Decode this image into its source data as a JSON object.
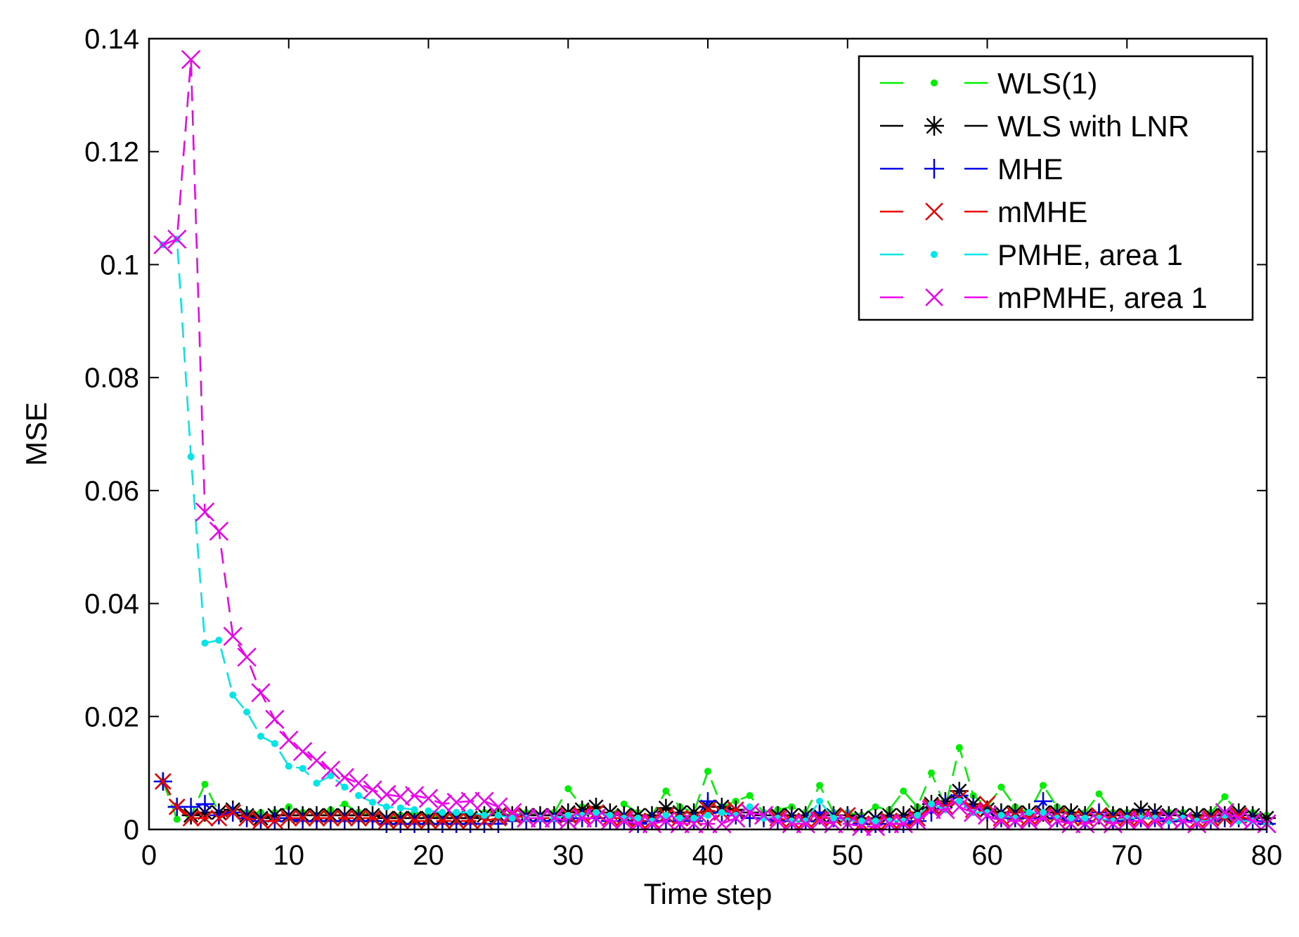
{
  "chart_data": {
    "type": "line",
    "title": "",
    "xlabel": "Time step",
    "ylabel": "MSE",
    "xlim": [
      0,
      80
    ],
    "ylim": [
      0,
      0.14
    ],
    "xticks": [
      0,
      10,
      20,
      30,
      40,
      50,
      60,
      70,
      80
    ],
    "xtick_labels": [
      "0",
      "10",
      "20",
      "30",
      "40",
      "50",
      "60",
      "70",
      "80"
    ],
    "yticks": [
      0,
      0.02,
      0.04,
      0.06,
      0.08,
      0.1,
      0.12,
      0.14
    ],
    "ytick_labels": [
      "0",
      "0.02",
      "0.04",
      "0.06",
      "0.08",
      "0.1",
      "0.12",
      "0.14"
    ],
    "grid": false,
    "legend_position": "top-right",
    "series": [
      {
        "name": "WLS(1)",
        "color": "#00ee00",
        "marker": "dot",
        "line": "dashed",
        "x": [
          1,
          2,
          3,
          4,
          5,
          6,
          7,
          8,
          9,
          10,
          11,
          12,
          13,
          14,
          15,
          16,
          17,
          18,
          19,
          20,
          21,
          22,
          23,
          24,
          25,
          26,
          27,
          28,
          29,
          30,
          31,
          32,
          33,
          34,
          35,
          36,
          37,
          38,
          39,
          40,
          41,
          42,
          43,
          44,
          45,
          46,
          47,
          48,
          49,
          50,
          51,
          52,
          53,
          54,
          55,
          56,
          57,
          58,
          59,
          60,
          61,
          62,
          63,
          64,
          65,
          66,
          67,
          68,
          69,
          70,
          71,
          72,
          73,
          74,
          75,
          76,
          77,
          78,
          79,
          80
        ],
        "values": [
          0.0085,
          0.0018,
          0.0025,
          0.008,
          0.003,
          0.0035,
          0.003,
          0.003,
          0.003,
          0.004,
          0.003,
          0.0025,
          0.0035,
          0.0045,
          0.003,
          0.0025,
          0.002,
          0.0025,
          0.003,
          0.0025,
          0.002,
          0.003,
          0.0025,
          0.003,
          0.003,
          0.0025,
          0.003,
          0.0025,
          0.003,
          0.0072,
          0.004,
          0.003,
          0.0025,
          0.0045,
          0.003,
          0.0025,
          0.0068,
          0.004,
          0.003,
          0.0103,
          0.004,
          0.005,
          0.006,
          0.003,
          0.0035,
          0.004,
          0.003,
          0.0078,
          0.003,
          0.003,
          0.0025,
          0.004,
          0.0035,
          0.0068,
          0.004,
          0.01,
          0.004,
          0.0145,
          0.006,
          0.004,
          0.0075,
          0.004,
          0.003,
          0.0078,
          0.004,
          0.003,
          0.003,
          0.0063,
          0.003,
          0.003,
          0.003,
          0.0025,
          0.003,
          0.003,
          0.0025,
          0.003,
          0.0058,
          0.003,
          0.003,
          0.0025
        ]
      },
      {
        "name": "WLS with LNR",
        "color": "#000000",
        "marker": "asterisk",
        "line": "dashed",
        "x": [
          1,
          2,
          3,
          4,
          5,
          6,
          7,
          8,
          9,
          10,
          11,
          12,
          13,
          14,
          15,
          16,
          17,
          18,
          19,
          20,
          21,
          22,
          23,
          24,
          25,
          26,
          27,
          28,
          29,
          30,
          31,
          32,
          33,
          34,
          35,
          36,
          37,
          38,
          39,
          40,
          41,
          42,
          43,
          44,
          45,
          46,
          47,
          48,
          49,
          50,
          51,
          52,
          53,
          54,
          55,
          56,
          57,
          58,
          59,
          60,
          61,
          62,
          63,
          64,
          65,
          66,
          67,
          68,
          69,
          70,
          71,
          72,
          73,
          74,
          75,
          76,
          77,
          78,
          79,
          80
        ],
        "values": [
          0.0085,
          0.004,
          0.0025,
          0.003,
          0.003,
          0.0035,
          0.0025,
          0.002,
          0.0025,
          0.0025,
          0.0025,
          0.0025,
          0.0025,
          0.0025,
          0.0025,
          0.0025,
          0.002,
          0.002,
          0.002,
          0.002,
          0.002,
          0.002,
          0.002,
          0.0025,
          0.0025,
          0.0025,
          0.0025,
          0.0025,
          0.0025,
          0.003,
          0.0035,
          0.004,
          0.003,
          0.0025,
          0.0025,
          0.0025,
          0.0038,
          0.003,
          0.003,
          0.004,
          0.004,
          0.0035,
          0.003,
          0.0025,
          0.0025,
          0.0025,
          0.0025,
          0.0025,
          0.0025,
          0.0025,
          0.002,
          0.002,
          0.0025,
          0.0025,
          0.003,
          0.0045,
          0.005,
          0.0068,
          0.0045,
          0.0035,
          0.003,
          0.003,
          0.003,
          0.003,
          0.003,
          0.003,
          0.0025,
          0.0025,
          0.0025,
          0.0025,
          0.0035,
          0.003,
          0.0025,
          0.0025,
          0.0025,
          0.0025,
          0.0025,
          0.003,
          0.0025,
          0.002
        ]
      },
      {
        "name": "MHE",
        "color": "#0000ee",
        "marker": "plus",
        "line": "dashed",
        "x": [
          1,
          2,
          3,
          4,
          5,
          6,
          7,
          8,
          9,
          10,
          11,
          12,
          13,
          14,
          15,
          16,
          17,
          18,
          19,
          20,
          21,
          22,
          23,
          24,
          25,
          26,
          27,
          28,
          29,
          30,
          31,
          32,
          33,
          34,
          35,
          36,
          37,
          38,
          39,
          40,
          41,
          42,
          43,
          44,
          45,
          46,
          47,
          48,
          49,
          50,
          51,
          52,
          53,
          54,
          55,
          56,
          57,
          58,
          59,
          60,
          61,
          62,
          63,
          64,
          65,
          66,
          67,
          68,
          69,
          70,
          71,
          72,
          73,
          74,
          75,
          76,
          77,
          78,
          79,
          80
        ],
        "values": [
          0.0085,
          0.004,
          0.004,
          0.0045,
          0.0025,
          0.003,
          0.002,
          0.0015,
          0.0015,
          0.002,
          0.0015,
          0.0015,
          0.0015,
          0.0015,
          0.0015,
          0.0015,
          0.001,
          0.001,
          0.001,
          0.001,
          0.001,
          0.001,
          0.001,
          0.001,
          0.001,
          0.0015,
          0.0015,
          0.0015,
          0.0015,
          0.0015,
          0.002,
          0.002,
          0.0015,
          0.0015,
          0.001,
          0.0015,
          0.0015,
          0.0015,
          0.0015,
          0.005,
          0.003,
          0.0025,
          0.002,
          0.002,
          0.0015,
          0.0015,
          0.0015,
          0.003,
          0.002,
          0.002,
          0.001,
          0.001,
          0.001,
          0.001,
          0.0015,
          0.003,
          0.0045,
          0.006,
          0.004,
          0.003,
          0.002,
          0.002,
          0.002,
          0.005,
          0.002,
          0.0015,
          0.0015,
          0.003,
          0.0015,
          0.0015,
          0.002,
          0.002,
          0.0015,
          0.0015,
          0.0015,
          0.0015,
          0.002,
          0.002,
          0.0015,
          0.001
        ]
      },
      {
        "name": "mMHE",
        "color": "#ee0000",
        "marker": "x",
        "line": "dashed",
        "x": [
          1,
          2,
          3,
          4,
          5,
          6,
          7,
          8,
          9,
          10,
          11,
          12,
          13,
          14,
          15,
          16,
          17,
          18,
          19,
          20,
          21,
          22,
          23,
          24,
          25,
          26,
          27,
          28,
          29,
          30,
          31,
          32,
          33,
          34,
          35,
          36,
          37,
          38,
          39,
          40,
          41,
          42,
          43,
          44,
          45,
          46,
          47,
          48,
          49,
          50,
          51,
          52,
          53,
          54,
          55,
          56,
          57,
          58,
          59,
          60,
          61,
          62,
          63,
          64,
          65,
          66,
          67,
          68,
          69,
          70,
          71,
          72,
          73,
          74,
          75,
          76,
          77,
          78,
          79,
          80
        ],
        "values": [
          0.0085,
          0.004,
          0.002,
          0.002,
          0.002,
          0.003,
          0.002,
          0.0015,
          0.0015,
          0.002,
          0.002,
          0.002,
          0.002,
          0.002,
          0.002,
          0.002,
          0.0015,
          0.0015,
          0.0015,
          0.0015,
          0.0015,
          0.0015,
          0.0015,
          0.0015,
          0.002,
          0.0025,
          0.002,
          0.002,
          0.002,
          0.0025,
          0.0025,
          0.003,
          0.002,
          0.002,
          0.0015,
          0.0015,
          0.0025,
          0.002,
          0.002,
          0.0035,
          0.003,
          0.0035,
          0.003,
          0.0025,
          0.002,
          0.0015,
          0.0015,
          0.002,
          0.002,
          0.0025,
          0.001,
          0.001,
          0.0015,
          0.0015,
          0.002,
          0.004,
          0.004,
          0.0055,
          0.0035,
          0.0045,
          0.002,
          0.0025,
          0.002,
          0.0025,
          0.0025,
          0.002,
          0.002,
          0.0025,
          0.002,
          0.002,
          0.002,
          0.002,
          0.002,
          0.0015,
          0.0015,
          0.002,
          0.002,
          0.0025,
          0.0015,
          0.001
        ]
      },
      {
        "name": "PMHE, area 1",
        "color": "#00e5e5",
        "marker": "dot",
        "line": "dashed",
        "x": [
          1,
          2,
          3,
          4,
          5,
          6,
          7,
          8,
          9,
          10,
          11,
          12,
          13,
          14,
          15,
          16,
          17,
          18,
          19,
          20,
          21,
          22,
          23,
          24,
          25,
          26,
          27,
          28,
          29,
          30,
          31,
          32,
          33,
          34,
          35,
          36,
          37,
          38,
          39,
          40,
          41,
          42,
          43,
          44,
          45,
          46,
          47,
          48,
          49,
          50,
          51,
          52,
          53,
          54,
          55,
          56,
          57,
          58,
          59,
          60,
          61,
          62,
          63,
          64,
          65,
          66,
          67,
          68,
          69,
          70,
          71,
          72,
          73,
          74,
          75,
          76,
          77,
          78,
          79,
          80
        ],
        "values": [
          0.1035,
          0.1045,
          0.066,
          0.033,
          0.0335,
          0.0238,
          0.0208,
          0.0165,
          0.0152,
          0.0112,
          0.0108,
          0.0082,
          0.0095,
          0.0075,
          0.006,
          0.0048,
          0.004,
          0.0038,
          0.0035,
          0.0033,
          0.003,
          0.003,
          0.003,
          0.0025,
          0.0025,
          0.002,
          0.002,
          0.002,
          0.002,
          0.0025,
          0.0025,
          0.003,
          0.0025,
          0.002,
          0.002,
          0.0015,
          0.0025,
          0.002,
          0.002,
          0.0025,
          0.003,
          0.0025,
          0.004,
          0.002,
          0.002,
          0.0015,
          0.0015,
          0.005,
          0.002,
          0.0015,
          0.0015,
          0.0015,
          0.0015,
          0.0015,
          0.0025,
          0.0045,
          0.0035,
          0.005,
          0.003,
          0.003,
          0.0025,
          0.002,
          0.003,
          0.003,
          0.002,
          0.002,
          0.002,
          0.002,
          0.0015,
          0.002,
          0.002,
          0.002,
          0.0015,
          0.002,
          0.0015,
          0.0015,
          0.0025,
          0.0015,
          0.0015,
          0.001
        ]
      },
      {
        "name": "mPMHE, area 1",
        "color": "#ee00ee",
        "marker": "x",
        "line": "dashed",
        "x": [
          1,
          2,
          3,
          4,
          5,
          6,
          7,
          8,
          9,
          10,
          11,
          12,
          13,
          14,
          15,
          16,
          17,
          18,
          19,
          20,
          21,
          22,
          23,
          24,
          25,
          26,
          27,
          28,
          29,
          30,
          31,
          32,
          33,
          34,
          35,
          36,
          37,
          38,
          39,
          40,
          41,
          42,
          43,
          44,
          45,
          46,
          47,
          48,
          49,
          50,
          51,
          52,
          53,
          54,
          55,
          56,
          57,
          58,
          59,
          60,
          61,
          62,
          63,
          64,
          65,
          66,
          67,
          68,
          69,
          70,
          71,
          72,
          73,
          74,
          75,
          76,
          77,
          78,
          79,
          80
        ],
        "values": [
          0.1035,
          0.1045,
          0.1363,
          0.0562,
          0.0528,
          0.0342,
          0.0305,
          0.0242,
          0.0195,
          0.0158,
          0.0138,
          0.0122,
          0.0105,
          0.0092,
          0.0082,
          0.007,
          0.0062,
          0.0058,
          0.006,
          0.0055,
          0.0045,
          0.0048,
          0.005,
          0.005,
          0.004,
          0.003,
          0.002,
          0.002,
          0.002,
          0.0015,
          0.002,
          0.002,
          0.0015,
          0.0015,
          0.001,
          0.001,
          0.0015,
          0.001,
          0.001,
          0.001,
          0.001,
          0.002,
          0.003,
          0.0025,
          0.0015,
          0.001,
          0.001,
          0.0015,
          0.001,
          0.001,
          0.0005,
          0.0005,
          0.001,
          0.001,
          0.0015,
          0.0035,
          0.0035,
          0.004,
          0.003,
          0.0025,
          0.0015,
          0.0015,
          0.0015,
          0.002,
          0.0015,
          0.001,
          0.001,
          0.0015,
          0.001,
          0.0015,
          0.0015,
          0.0015,
          0.002,
          0.0015,
          0.001,
          0.0015,
          0.003,
          0.002,
          0.0015,
          0.001
        ]
      }
    ]
  }
}
